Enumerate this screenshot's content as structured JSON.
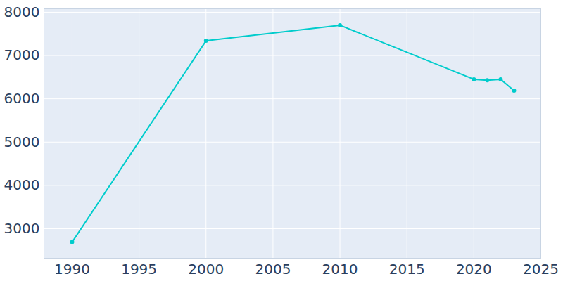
{
  "chart_data": {
    "type": "line",
    "x": [
      1990,
      2000,
      2010,
      2020,
      2021,
      2022,
      2023
    ],
    "values": [
      2690,
      7340,
      7700,
      6450,
      6430,
      6450,
      6190
    ],
    "color": "#00cccc",
    "marker": "circle",
    "xlim": [
      1987.9,
      2025
    ],
    "xticks": [
      1990,
      1995,
      2000,
      2005,
      2010,
      2015,
      2020,
      2025
    ],
    "ylim": [
      2318,
      8080
    ],
    "yticks": [
      3000,
      4000,
      5000,
      6000,
      7000,
      8000
    ],
    "grid": true
  }
}
